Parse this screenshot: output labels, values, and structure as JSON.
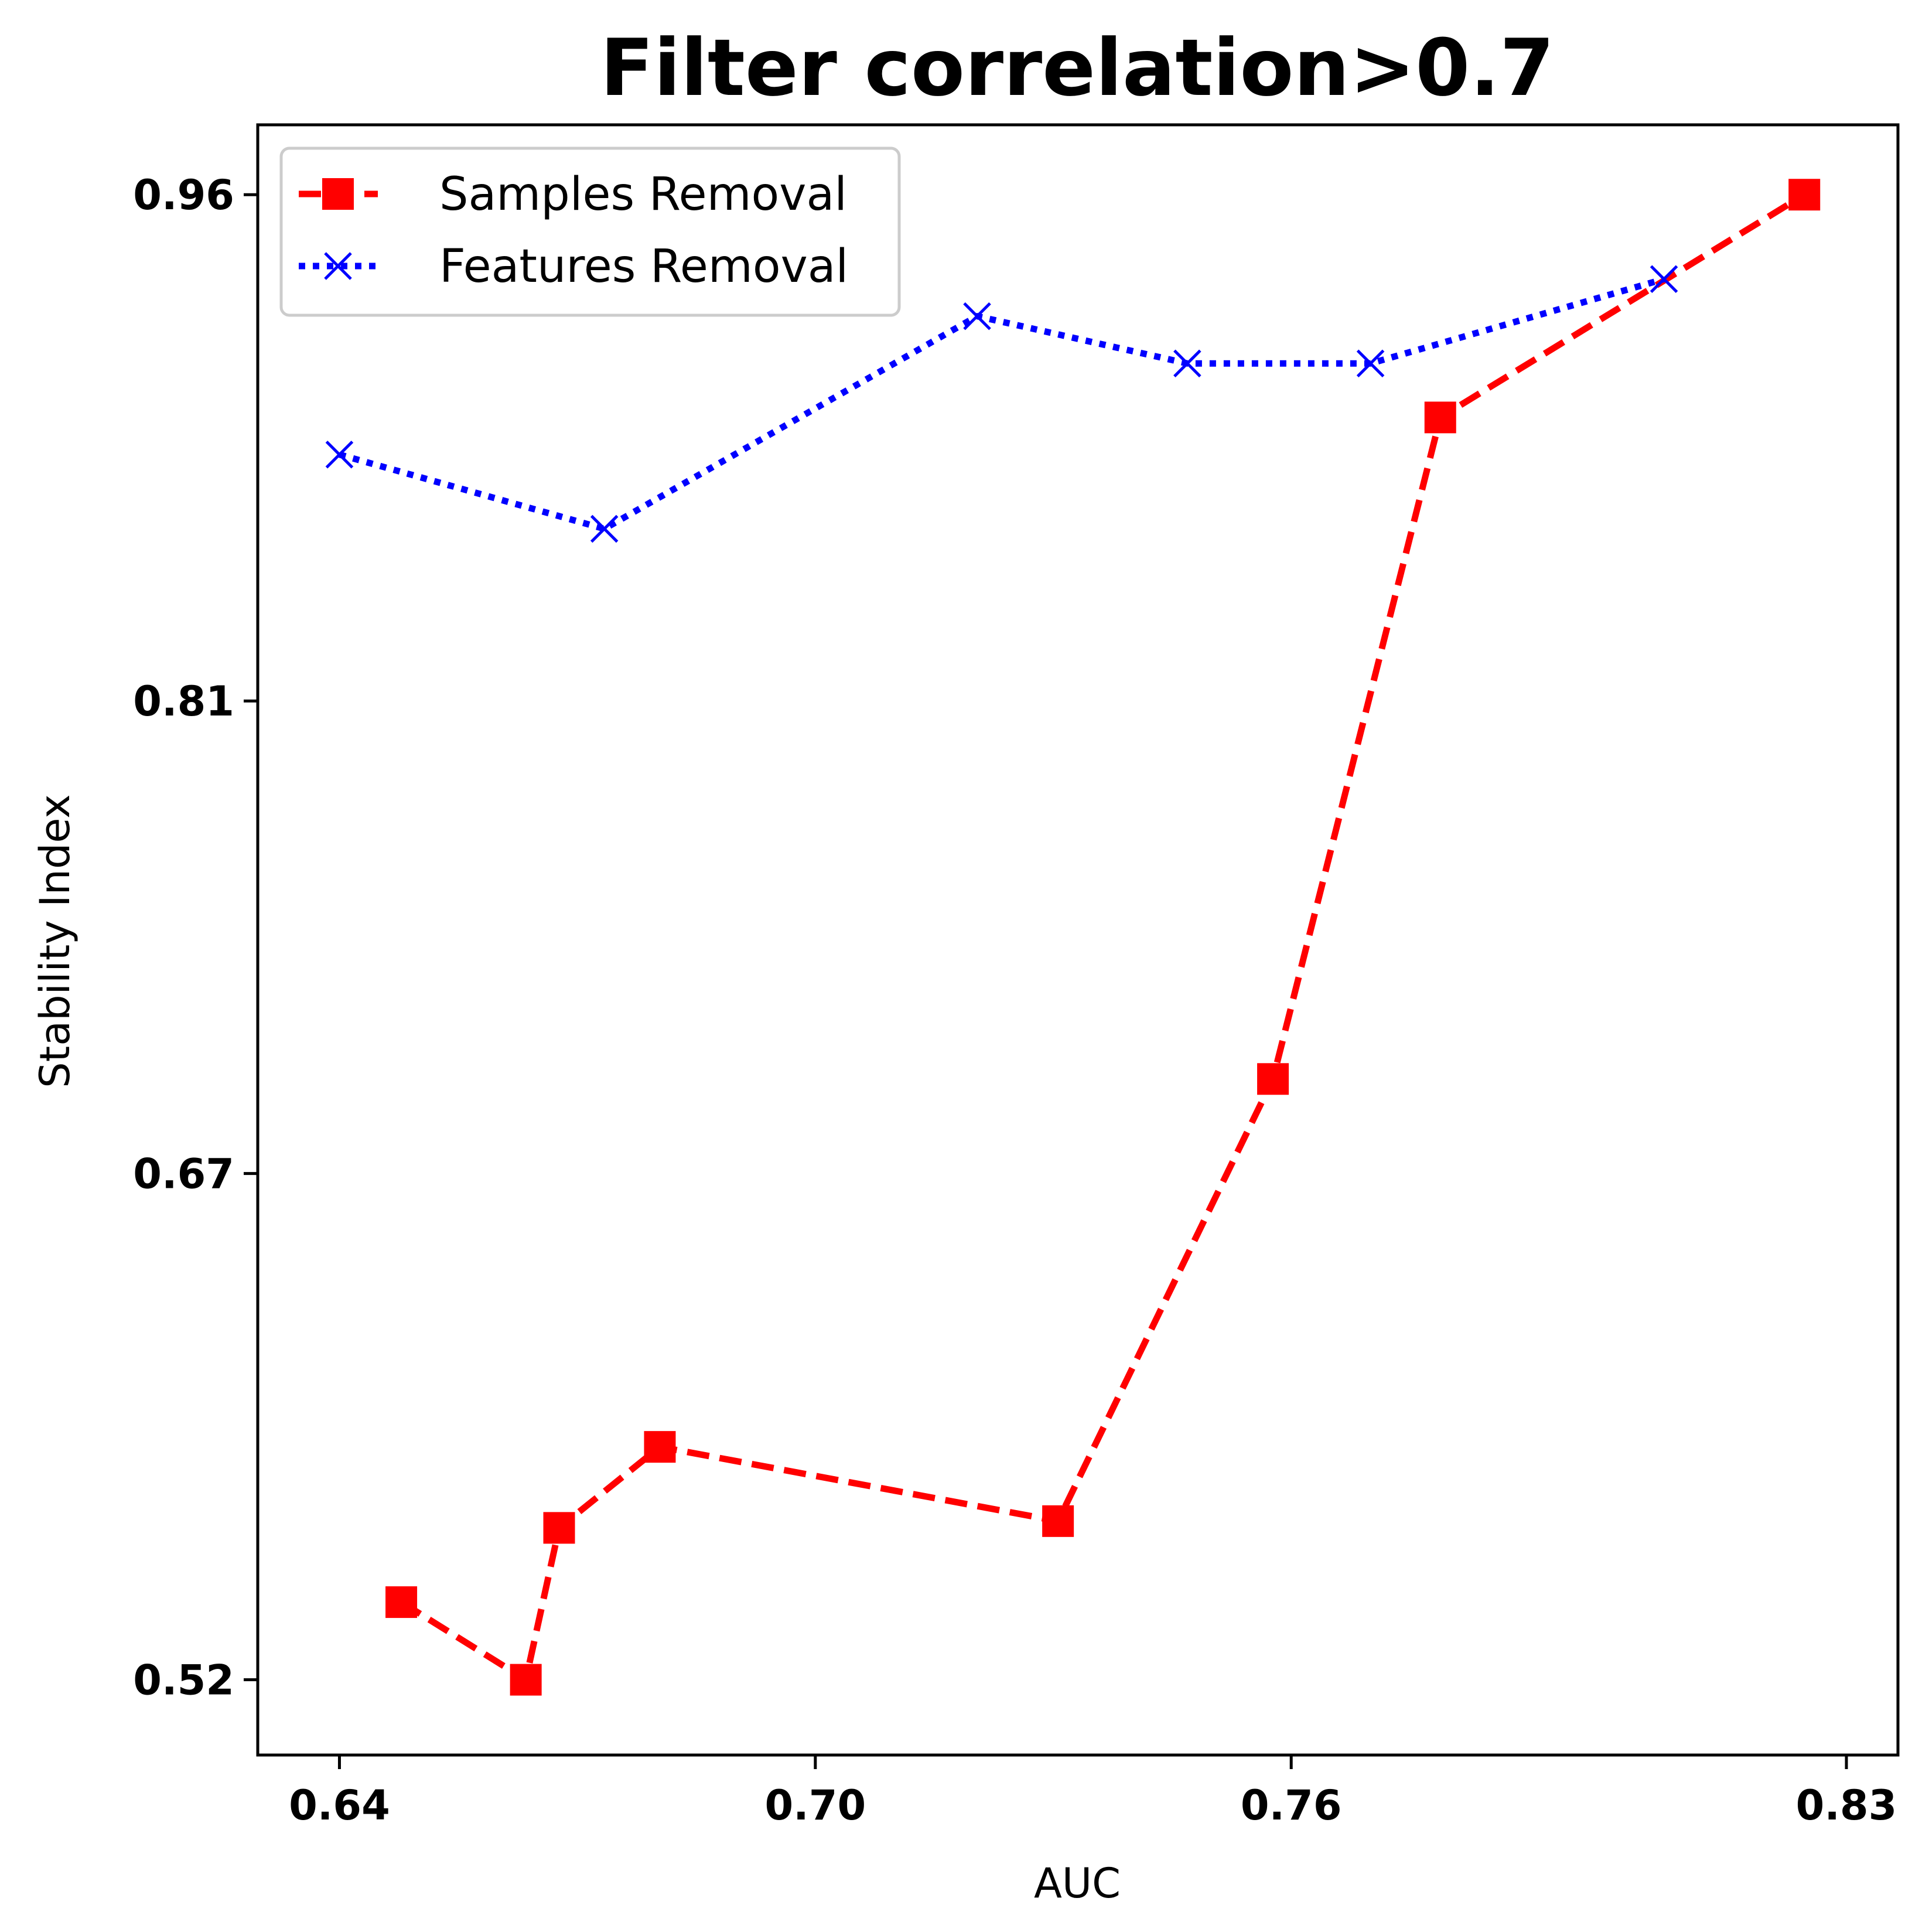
{
  "chart_data": {
    "type": "line",
    "title": "Filter correlation>0.7",
    "xlabel": "AUC",
    "ylabel": "Stability Index",
    "xlim": [
      0.6297,
      0.8365
    ],
    "ylim": [
      0.4977,
      0.9807
    ],
    "x_ticks": [
      0.64,
      0.7,
      0.76,
      0.83
    ],
    "x_tick_labels": [
      "0.64",
      "0.70",
      "0.76",
      "0.83"
    ],
    "y_ticks": [
      0.52,
      0.67,
      0.81,
      0.96
    ],
    "y_tick_labels": [
      "0.52",
      "0.67",
      "0.81",
      "0.96"
    ],
    "grid": false,
    "legend_position": "top-left",
    "series": [
      {
        "name": "Samples Removal",
        "color": "#ff0000",
        "line_style": "dashed",
        "marker": "square",
        "x": [
          0.6478,
          0.6635,
          0.6677,
          0.6804,
          0.7306,
          0.7577,
          0.7788,
          0.8247
        ],
        "y": [
          0.543,
          0.52,
          0.565,
          0.589,
          0.567,
          0.698,
          0.894,
          0.96
        ]
      },
      {
        "name": "Features Removal",
        "color": "#0000ff",
        "line_style": "dotted",
        "marker": "x",
        "x": [
          0.64,
          0.6734,
          0.7204,
          0.7469,
          0.77,
          0.807
        ],
        "y": [
          0.883,
          0.861,
          0.924,
          0.91,
          0.91,
          0.935
        ]
      }
    ]
  }
}
